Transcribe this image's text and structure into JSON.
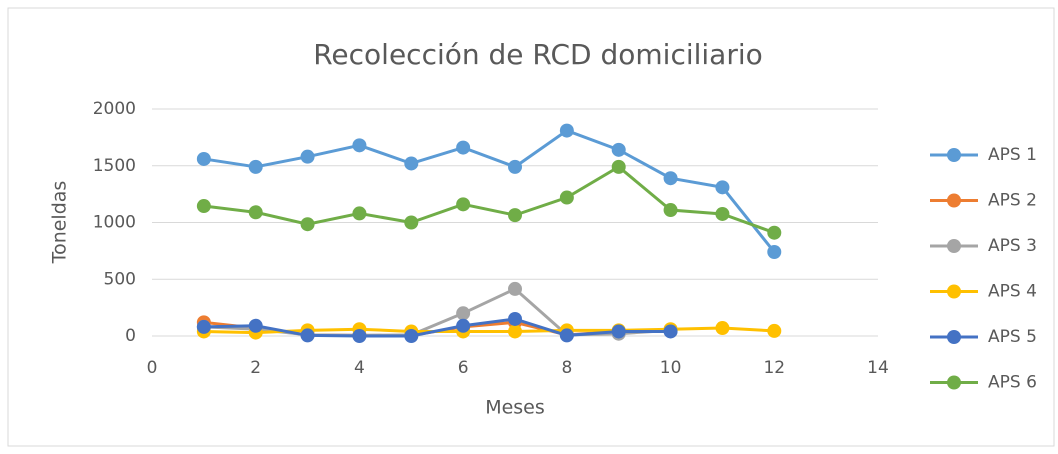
{
  "chart_data": {
    "type": "line",
    "title": "Recolección de RCD domiciliario",
    "x_label": "Meses",
    "y_label": "Toneldas",
    "x": [
      1,
      2,
      3,
      4,
      5,
      6,
      7,
      8,
      9,
      10,
      11,
      12
    ],
    "xlim": [
      0,
      14
    ],
    "xticks": [
      0,
      2,
      4,
      6,
      8,
      10,
      12,
      14
    ],
    "ylim": [
      0,
      2000
    ],
    "yticks": [
      0,
      500,
      1000,
      1500,
      2000
    ],
    "grid": true,
    "legend": "right",
    "series": [
      {
        "name": "APS 1",
        "color": "#5b9bd5",
        "values": [
          1560,
          1490,
          1580,
          1680,
          1520,
          1660,
          1490,
          1810,
          1640,
          1390,
          1310,
          740
        ]
      },
      {
        "name": "APS 2",
        "color": "#ed7d31",
        "values": [
          120,
          70,
          10,
          5,
          5,
          80,
          120,
          10,
          40,
          50,
          null,
          null
        ]
      },
      {
        "name": "APS 3",
        "color": "#a5a5a5",
        "values": [
          80,
          60,
          10,
          5,
          10,
          200,
          415,
          10,
          20,
          50,
          null,
          null
        ]
      },
      {
        "name": "APS 4",
        "color": "#ffc000",
        "values": [
          40,
          30,
          50,
          60,
          40,
          40,
          40,
          50,
          50,
          60,
          70,
          45
        ]
      },
      {
        "name": "APS 5",
        "color": "#4472c4",
        "values": [
          80,
          90,
          5,
          0,
          0,
          90,
          150,
          5,
          40,
          40,
          null,
          null
        ]
      },
      {
        "name": "APS 6",
        "color": "#70ad47",
        "values": [
          1145,
          1090,
          985,
          1080,
          1000,
          1160,
          1065,
          1220,
          1490,
          1110,
          1075,
          910
        ]
      }
    ]
  }
}
